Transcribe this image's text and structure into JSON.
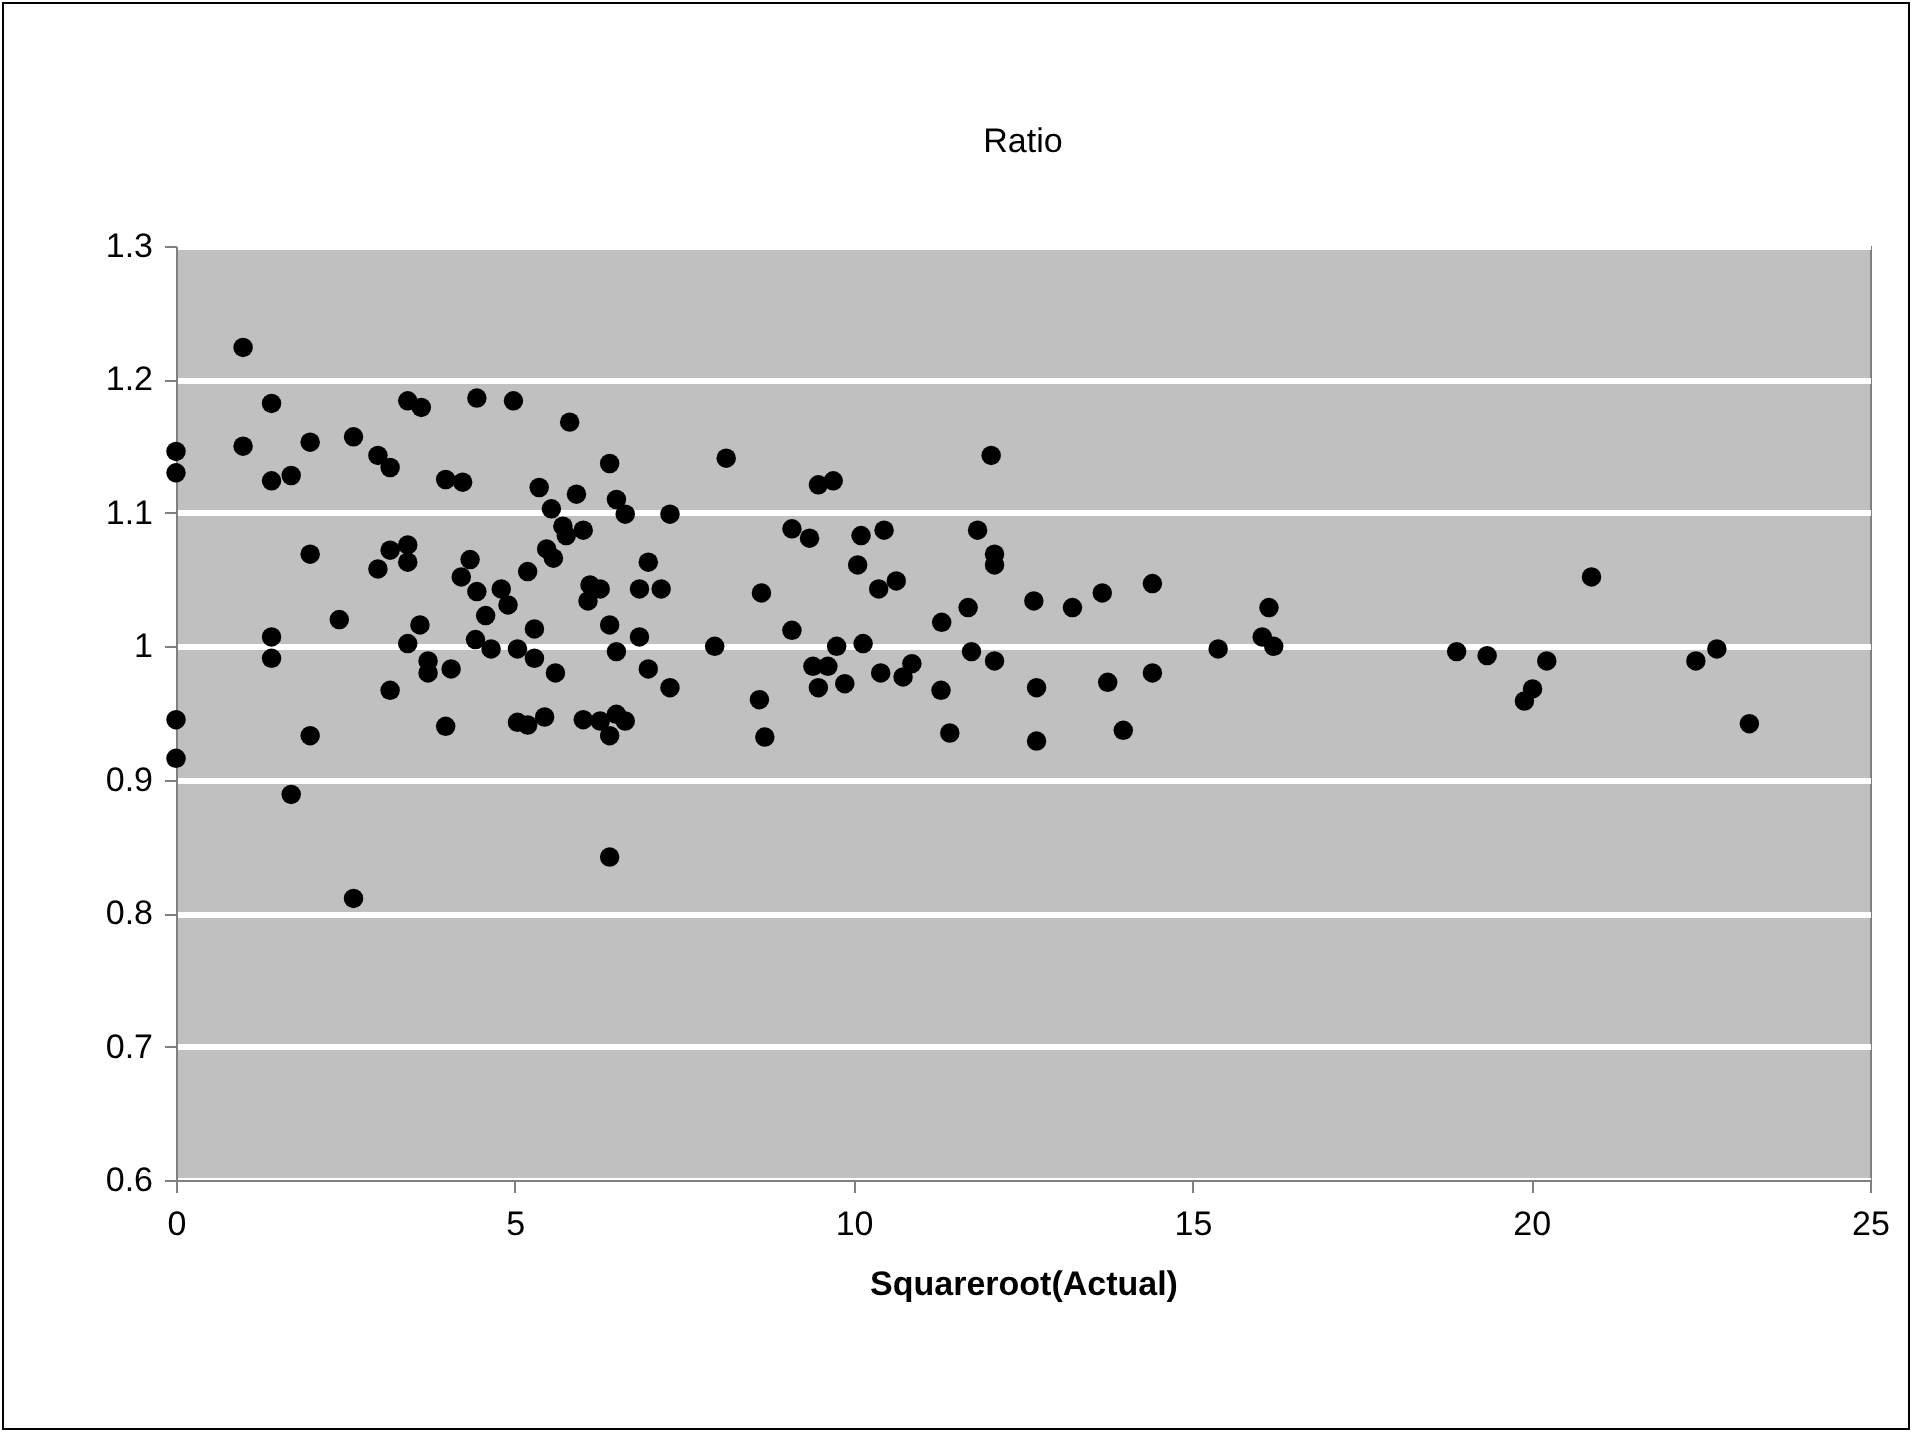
{
  "chart_data": {
    "type": "scatter",
    "title": "Ratio",
    "xlabel": "Squareroot(Actual)",
    "x": [
      0,
      0,
      0,
      0,
      0.99,
      0.99,
      1.41,
      1.41,
      1.41,
      1.41,
      1.7,
      1.7,
      1.98,
      1.98,
      1.98,
      2.41,
      2.62,
      2.62,
      2.98,
      3.16,
      2.98,
      3.16,
      3.16,
      3.42,
      3.42,
      3.42,
      3.42,
      3.62,
      3.6,
      3.72,
      3.72,
      3.98,
      3.98,
      4.06,
      4.23,
      4.21,
      4.34,
      4.44,
      4.44,
      4.42,
      4.57,
      4.65,
      4.8,
      4.9,
      4.98,
      5.04,
      5.04,
      5.19,
      5.19,
      5.29,
      5.29,
      5.36,
      5.54,
      5.47,
      5.44,
      5.6,
      5.81,
      6.4,
      5.91,
      6.5,
      6.63,
      7.29,
      8.12,
      9.48,
      9.7,
      5.71,
      6.01,
      5.76,
      5.57,
      6.97,
      6.11,
      6.26,
      6.08,
      6.84,
      7.16,
      8.64,
      9.09,
      9.35,
      10.11,
      10.45,
      10.06,
      10.37,
      10.63,
      6.4,
      6.84,
      6.5,
      7.95,
      6.97,
      7.29,
      9.09,
      9.75,
      10.14,
      9.4,
      9.62,
      9.48,
      9.87,
      10.4,
      10.73,
      10.86,
      11.3,
      11.29,
      6.01,
      6.26,
      6.5,
      6.63,
      6.4,
      8.61,
      8.69,
      6.4,
      12.03,
      11.83,
      12.08,
      12.08,
      11.69,
      12.66,
      13.23,
      13.67,
      14.41,
      11.74,
      12.08,
      11.42,
      12.7,
      12.7,
      13.75,
      13.98,
      14.41,
      15.38,
      16.13,
      16.03,
      16.2,
      18.9,
      19.35,
      20.23,
      20.02,
      19.9,
      20.89,
      22.43,
      22.74,
      23.22
    ],
    "values": [
      1.146,
      1.13,
      0.945,
      0.916,
      1.224,
      1.15,
      1.182,
      1.124,
      1.007,
      0.991,
      1.128,
      0.889,
      1.153,
      1.069,
      0.933,
      1.02,
      0.811,
      1.157,
      1.143,
      1.134,
      1.058,
      1.072,
      0.967,
      1.076,
      1.063,
      1.002,
      1.184,
      1.179,
      1.016,
      0.989,
      0.98,
      1.125,
      0.94,
      0.983,
      1.123,
      1.052,
      1.065,
      1.041,
      1.186,
      1.005,
      1.023,
      0.998,
      1.043,
      1.031,
      1.184,
      0.998,
      0.943,
      0.941,
      1.056,
      1.013,
      0.991,
      1.119,
      1.103,
      1.073,
      0.947,
      0.98,
      1.168,
      1.137,
      1.114,
      1.11,
      1.099,
      1.099,
      1.141,
      1.121,
      1.124,
      1.09,
      1.087,
      1.083,
      1.066,
      1.063,
      1.046,
      1.043,
      1.034,
      1.043,
      1.043,
      1.04,
      1.088,
      1.081,
      1.083,
      1.087,
      1.061,
      1.043,
      1.049,
      1.016,
      1.007,
      0.996,
      1.0,
      0.983,
      0.969,
      1.012,
      1.0,
      1.002,
      0.985,
      0.985,
      0.969,
      0.972,
      0.98,
      0.977,
      0.987,
      1.018,
      0.967,
      0.945,
      0.944,
      0.949,
      0.944,
      0.933,
      0.96,
      0.932,
      0.842,
      1.143,
      1.087,
      1.069,
      1.061,
      1.029,
      1.034,
      1.029,
      1.04,
      1.047,
      0.996,
      0.989,
      0.935,
      0.969,
      0.929,
      0.973,
      0.937,
      0.98,
      0.998,
      1.029,
      1.007,
      1.0,
      0.996,
      0.993,
      0.989,
      0.968,
      0.959,
      1.052,
      0.989,
      0.998,
      0.942
    ],
    "color": "#000000",
    "marker": "circle",
    "xlim": [
      0,
      25
    ],
    "xticks": [
      0,
      5,
      10,
      15,
      20,
      25
    ],
    "ylim": [
      0.6,
      1.3
    ],
    "yticks": [
      0.6,
      0.7,
      0.8,
      0.9,
      1,
      1.1,
      1.2,
      1.3
    ],
    "grid": "y"
  }
}
